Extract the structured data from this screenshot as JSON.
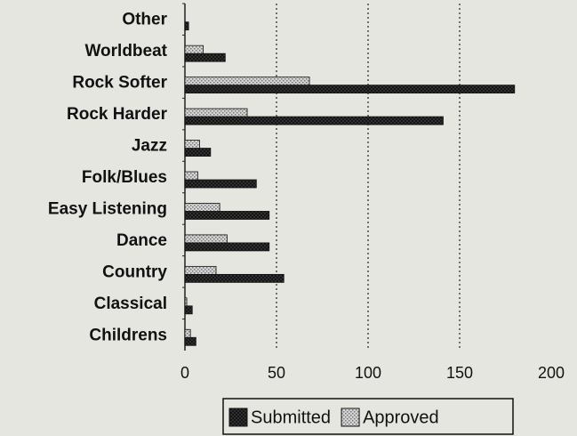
{
  "chart_data": {
    "type": "hbar",
    "categories": [
      "Other",
      "Worldbeat",
      "Rock Softer",
      "Rock Harder",
      "Jazz",
      "Folk/Blues",
      "Easy Listening",
      "Dance",
      "Country",
      "Classical",
      "Childrens"
    ],
    "series": [
      {
        "name": "Submitted",
        "color": "#3a3a3a",
        "values": [
          2,
          22,
          180,
          141,
          14,
          39,
          46,
          46,
          54,
          4,
          6
        ]
      },
      {
        "name": "Approved",
        "color": "#d4d4d4",
        "values": [
          0,
          10,
          68,
          34,
          8,
          7,
          19,
          23,
          17,
          1,
          3
        ]
      }
    ],
    "xlim": [
      0,
      200
    ],
    "xticks": [
      0,
      50,
      100,
      150,
      200
    ],
    "grid": true,
    "legend": "bottom"
  }
}
